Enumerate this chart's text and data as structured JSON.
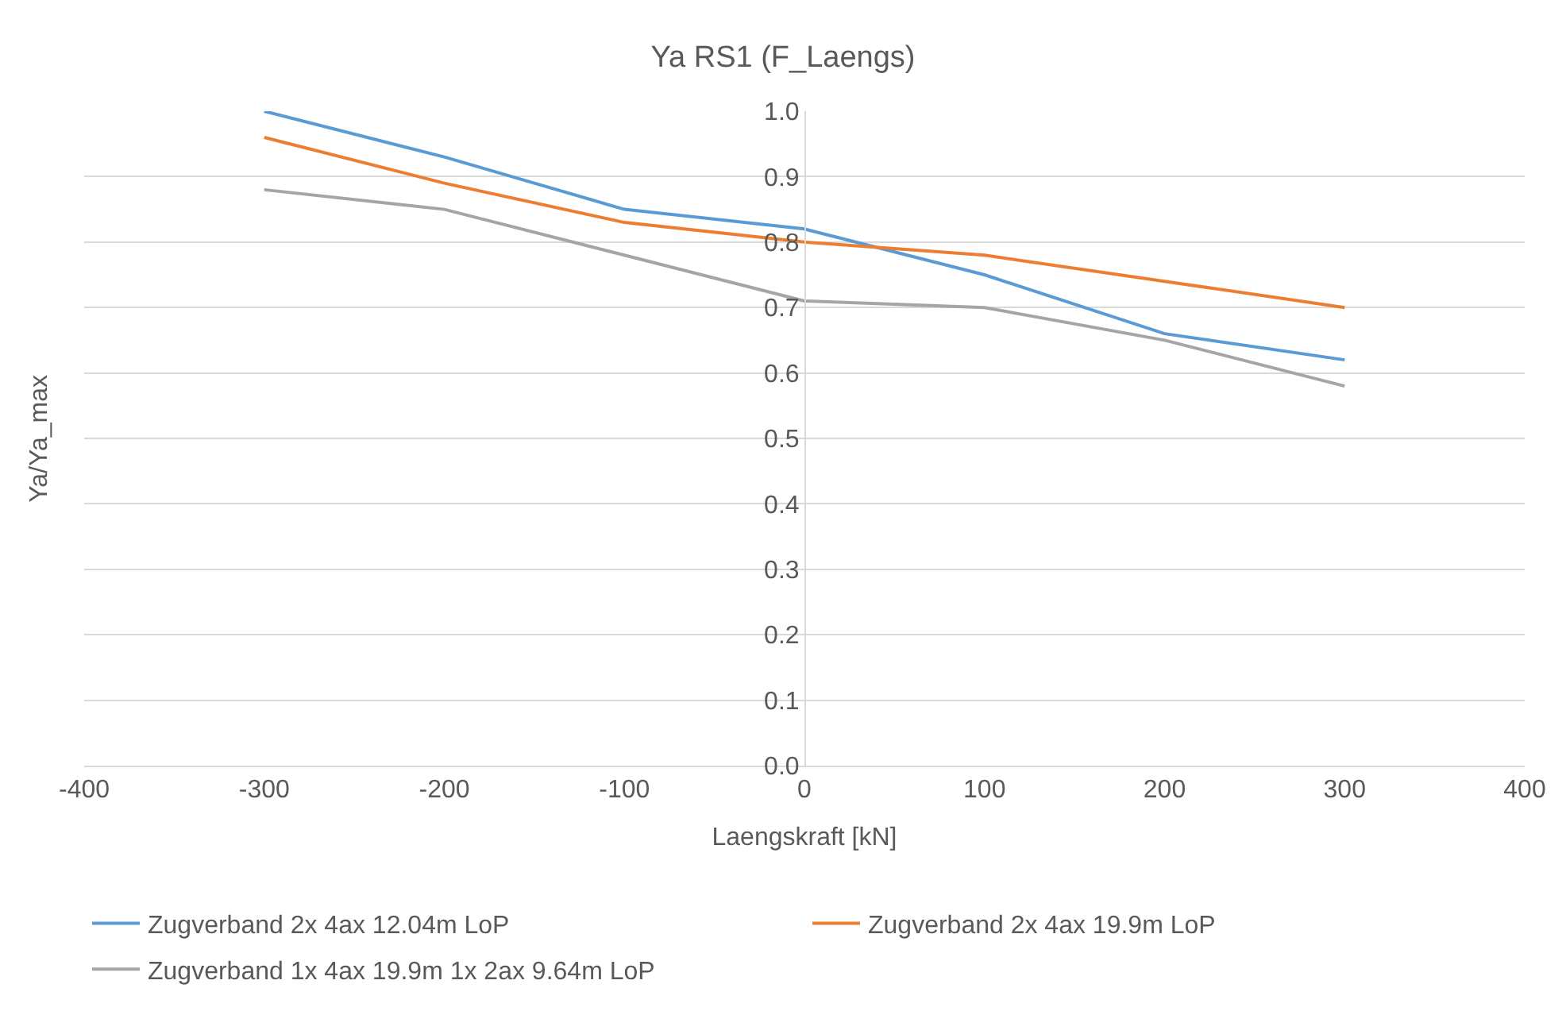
{
  "chart_data": {
    "type": "line",
    "title": "Ya RS1 (F_Laengs)",
    "xlabel": "Laengskraft [kN]",
    "ylabel": "Ya/Ya_max",
    "x": [
      -300,
      -200,
      -100,
      0,
      100,
      200,
      300
    ],
    "series": [
      {
        "name": "Zugverband 2x 4ax 12.04m LoP",
        "color": "#5b9bd5",
        "values": [
          1.0,
          0.93,
          0.85,
          0.82,
          0.75,
          0.66,
          0.62
        ]
      },
      {
        "name": "Zugverband 2x 4ax 19.9m LoP",
        "color": "#ed7d31",
        "values": [
          0.96,
          0.89,
          0.83,
          0.8,
          0.78,
          0.74,
          0.7
        ]
      },
      {
        "name": "Zugverband 1x 4ax 19.9m 1x 2ax 9.64m LoP",
        "color": "#a5a5a5",
        "values": [
          0.88,
          0.85,
          0.78,
          0.71,
          0.7,
          0.65,
          0.58
        ]
      }
    ],
    "xlim": [
      -400,
      400
    ],
    "xticks": [
      -400,
      -300,
      -200,
      -100,
      0,
      100,
      200,
      300,
      400
    ],
    "ylim": [
      0,
      1
    ],
    "yticks": [
      {
        "value": 0,
        "label": "0.0"
      },
      0.1,
      0.2,
      0.3,
      0.4,
      0.5,
      0.6,
      0.7,
      0.8,
      0.9,
      {
        "value": 1,
        "label": "1.0"
      }
    ],
    "grid": "y",
    "legend": "bottom",
    "marker": "none",
    "line_style": "solid"
  }
}
